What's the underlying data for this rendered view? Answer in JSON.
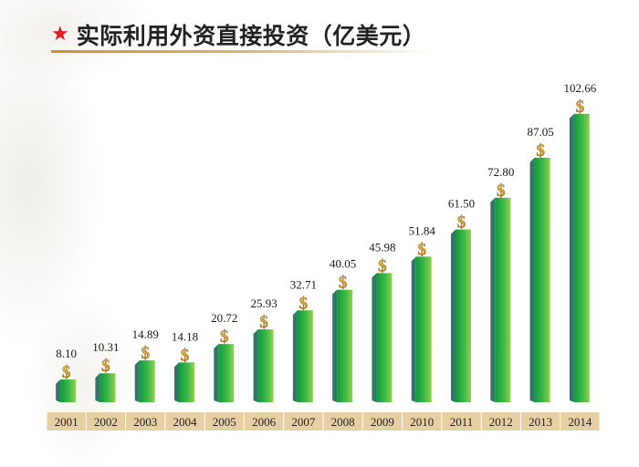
{
  "header": {
    "star_icon": "red-star-icon",
    "title": "实际利用外资直接投资（亿美元）"
  },
  "colors": {
    "star": "#e31b23",
    "bar_front_left": "#0f9b3c",
    "bar_front_right": "#8fd34c",
    "bar_side": "#2f6e6b",
    "axis_band": "#e6cfa2",
    "dollar_gold": "#d9a233"
  },
  "chart_data": {
    "type": "bar",
    "title": "实际利用外资直接投资（亿美元）",
    "xlabel": "",
    "ylabel": "",
    "ylim": [
      0,
      110
    ],
    "grid": false,
    "legend": "none",
    "marker_icon": "dollar-sign-icon",
    "marker_text": "$",
    "categories": [
      "2001",
      "2002",
      "2003",
      "2004",
      "2005",
      "2006",
      "2007",
      "2008",
      "2009",
      "2010",
      "2011",
      "2012",
      "2013",
      "2014"
    ],
    "values": [
      8.1,
      10.31,
      14.89,
      14.18,
      20.72,
      25.93,
      32.71,
      40.05,
      45.98,
      51.84,
      61.5,
      72.8,
      87.05,
      102.66
    ],
    "value_labels": [
      "8.10",
      "10.31",
      "14.89",
      "14.18",
      "20.72",
      "25.93",
      "32.71",
      "40.05",
      "45.98",
      "51.84",
      "61.50",
      "72.80",
      "87.05",
      "102.66"
    ]
  }
}
